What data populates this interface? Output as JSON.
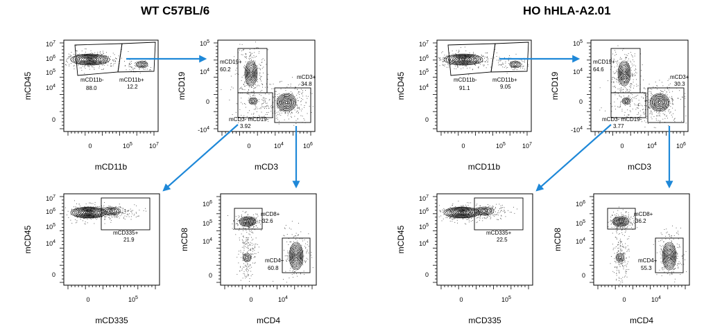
{
  "titles": {
    "left": "WT C57BL/6",
    "right": "HO hHLA-A2.01"
  },
  "colors": {
    "arrow": "#1e88d8",
    "ink": "#000000"
  },
  "chart_data": [
    {
      "type": "scatter",
      "panel": "WT C57BL/6 - mCD45 vs mCD11b",
      "xlabel": "mCD11b",
      "ylabel": "mCD45",
      "xticks": [
        "0",
        "10^5",
        "10^7"
      ],
      "yticks": [
        "10^7",
        "10^6",
        "10^5",
        "10^4",
        "0"
      ],
      "gates": [
        {
          "name": "mCD11b-",
          "percent": "88.0"
        },
        {
          "name": "mCD11b+",
          "percent": "12.2"
        }
      ]
    },
    {
      "type": "scatter",
      "panel": "WT C57BL/6 - mCD19 vs mCD3",
      "xlabel": "mCD3",
      "ylabel": "mCD19",
      "xticks": [
        "0",
        "10^4",
        "10^6"
      ],
      "yticks": [
        "10^5",
        "10^4",
        "0",
        "-10^4"
      ],
      "gates": [
        {
          "name": "mCD19+",
          "percent": "60.2"
        },
        {
          "name": "mCD3+",
          "percent": "34.8"
        },
        {
          "name": "mCD3- mCD19-",
          "percent": "3.92"
        }
      ]
    },
    {
      "type": "scatter",
      "panel": "WT C57BL/6 - mCD45 vs mCD335",
      "xlabel": "mCD335",
      "ylabel": "mCD45",
      "xticks": [
        "0",
        "10^5"
      ],
      "yticks": [
        "10^7",
        "10^6",
        "10^5",
        "10^4",
        "0"
      ],
      "gates": [
        {
          "name": "mCD335+",
          "percent": "21.9"
        }
      ]
    },
    {
      "type": "scatter",
      "panel": "WT C57BL/6 - mCD8 vs mCD4",
      "xlabel": "mCD4",
      "ylabel": "mCD8",
      "xticks": [
        "0",
        "10^4"
      ],
      "yticks": [
        "10^6",
        "10^5",
        "10^4",
        "0"
      ],
      "gates": [
        {
          "name": "mCD8+",
          "percent": "32.6"
        },
        {
          "name": "mCD4+",
          "percent": "60.8"
        }
      ]
    },
    {
      "type": "scatter",
      "panel": "HO hHLA-A2.01 - mCD45 vs mCD11b",
      "xlabel": "mCD11b",
      "ylabel": "mCD45",
      "xticks": [
        "0",
        "10^5",
        "10^7"
      ],
      "yticks": [
        "10^7",
        "10^6",
        "10^5",
        "10^4",
        "0"
      ],
      "gates": [
        {
          "name": "mCD11b-",
          "percent": "91.1"
        },
        {
          "name": "mCD11b+",
          "percent": "9.05"
        }
      ]
    },
    {
      "type": "scatter",
      "panel": "HO hHLA-A2.01 - mCD19 vs mCD3",
      "xlabel": "mCD3",
      "ylabel": "mCD19",
      "xticks": [
        "0",
        "10^4",
        "10^6"
      ],
      "yticks": [
        "10^5",
        "10^4",
        "0",
        "-10^4"
      ],
      "gates": [
        {
          "name": "mCD19+",
          "percent": "64.6"
        },
        {
          "name": "mCD3+",
          "percent": "30.3"
        },
        {
          "name": "mCD3- mCD19-",
          "percent": "3.77"
        }
      ]
    },
    {
      "type": "scatter",
      "panel": "HO hHLA-A2.01 - mCD45 vs mCD335",
      "xlabel": "mCD335",
      "ylabel": "mCD45",
      "xticks": [
        "0",
        "10^5"
      ],
      "yticks": [
        "10^7",
        "10^6",
        "10^5",
        "10^4",
        "0"
      ],
      "gates": [
        {
          "name": "mCD335+",
          "percent": "22.5"
        }
      ]
    },
    {
      "type": "scatter",
      "panel": "HO hHLA-A2.01 - mCD8 vs mCD4",
      "xlabel": "mCD4",
      "ylabel": "mCD8",
      "xticks": [
        "0",
        "10^4"
      ],
      "yticks": [
        "10^6",
        "10^5",
        "10^4",
        "0"
      ],
      "gates": [
        {
          "name": "mCD8+",
          "percent": "36.2"
        },
        {
          "name": "mCD4+",
          "percent": "55.3"
        }
      ]
    }
  ]
}
